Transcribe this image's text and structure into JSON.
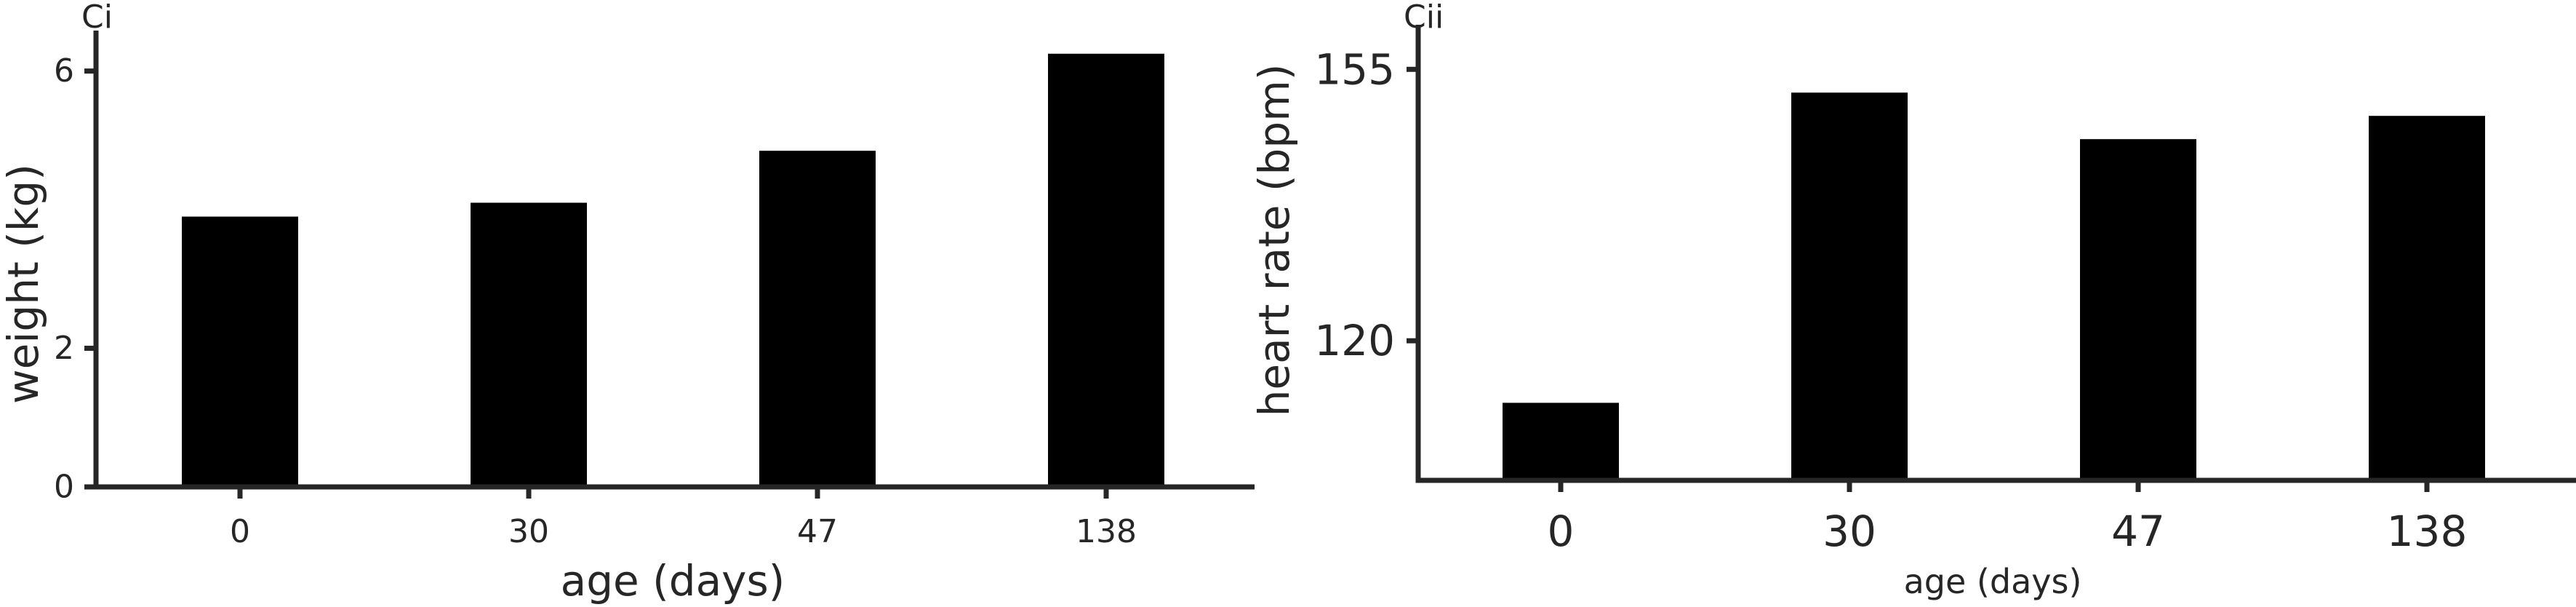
{
  "chart_data": [
    {
      "type": "bar",
      "panel_label": "Ci",
      "categories": [
        "0",
        "30",
        "47",
        "138"
      ],
      "values": [
        3.9,
        4.1,
        4.85,
        6.25
      ],
      "xlabel": "age (days)",
      "ylabel": "weight (kg)",
      "yticks": [
        0,
        2,
        6
      ],
      "ylim": [
        0,
        6.5
      ],
      "grid": false,
      "colors": {
        "bar": "#000000",
        "axis": "#262626"
      }
    },
    {
      "type": "bar",
      "panel_label": "Cii",
      "categories": [
        "0",
        "30",
        "47",
        "138"
      ],
      "values": [
        112,
        152,
        146,
        149
      ],
      "xlabel": "age (days)",
      "ylabel": "heart rate (bpm)",
      "yticks": [
        120,
        155
      ],
      "ylim": [
        102,
        160
      ],
      "grid": false,
      "colors": {
        "bar": "#000000",
        "axis": "#262626"
      }
    }
  ]
}
